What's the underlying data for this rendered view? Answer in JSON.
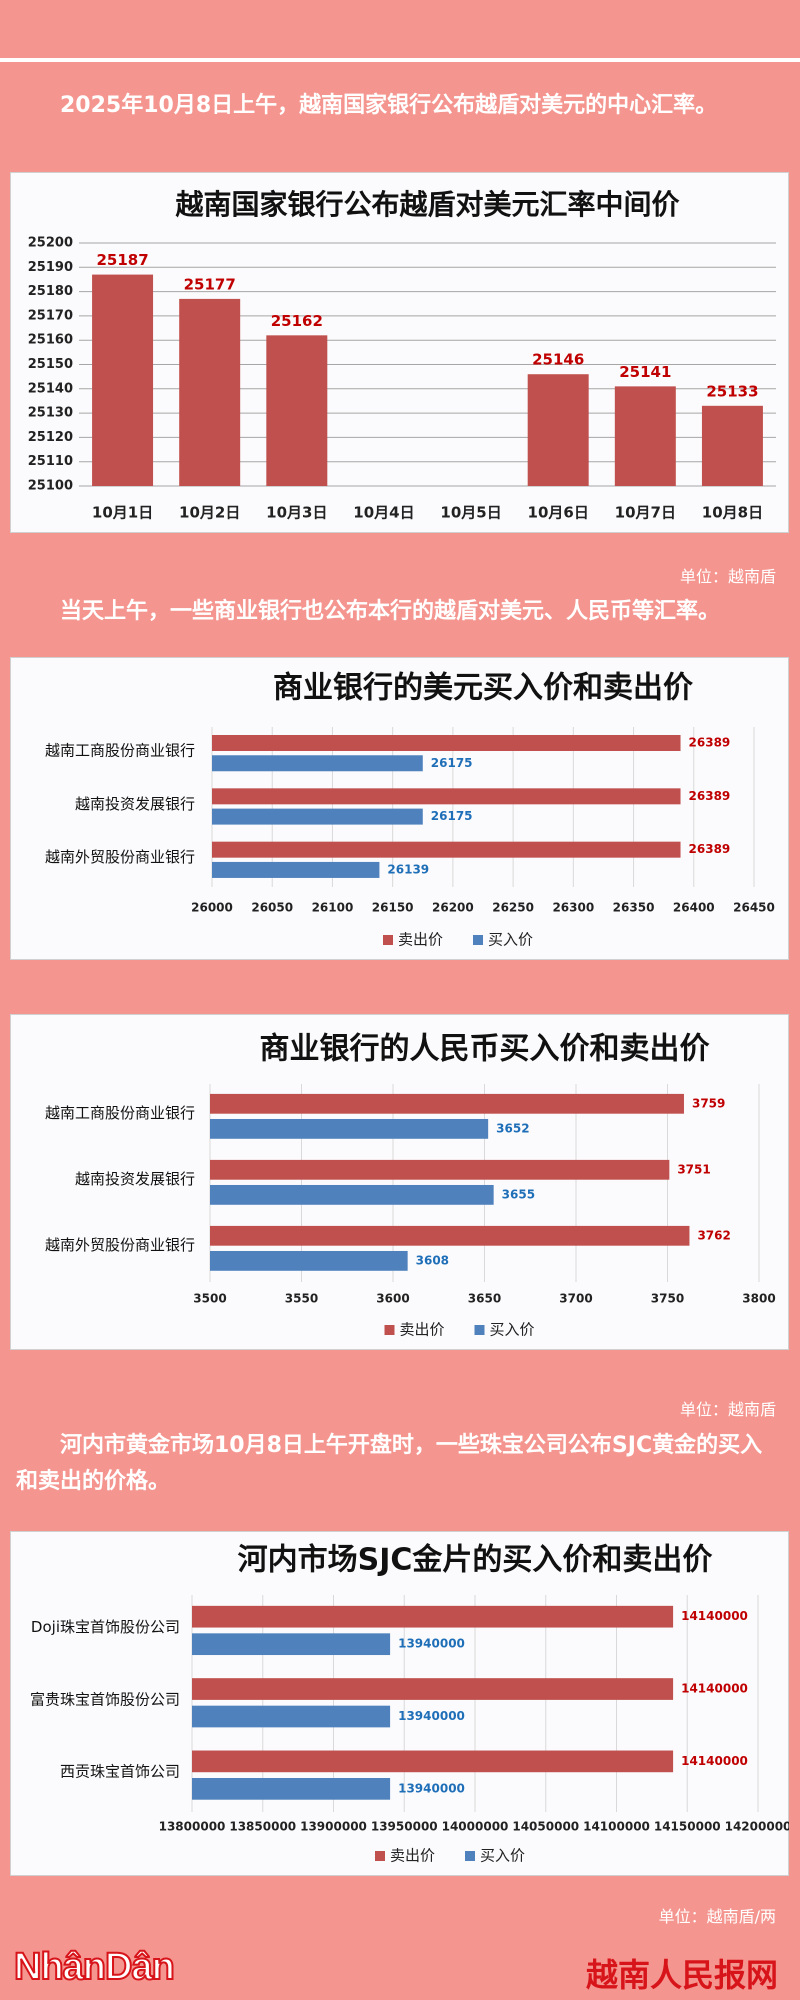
{
  "paragraphs": [
    "2025年10月8日上午，越南国家银行公布越盾对美元的中心汇率。",
    "当天上午，一些商业银行也公布本行的越盾对美元、人民币等汇率。",
    "河内市黄金市场10月8日上午开盘时，一些珠宝公司公布SJC黄金的买入和卖出的价格。"
  ],
  "units": [
    "单位：越南盾",
    "单位：越南盾",
    "单位：越南盾/两"
  ],
  "footer": {
    "left_logo": "NhânDân",
    "right_logo": "越南人民报网"
  },
  "chart_data": [
    {
      "type": "bar",
      "title": "越南国家银行公布越盾对美元汇率中间价",
      "categories": [
        "10月1日",
        "10月2日",
        "10月3日",
        "10月4日",
        "10月5日",
        "10月6日",
        "10月7日",
        "10月8日"
      ],
      "values": [
        25187,
        25177,
        25162,
        null,
        null,
        25146,
        25141,
        25133
      ],
      "color": "#c0504d",
      "label_color": "#c00000",
      "ylim": [
        25100,
        25200
      ],
      "yticks": [
        25100,
        25110,
        25120,
        25130,
        25140,
        25150,
        25160,
        25170,
        25180,
        25190,
        25200
      ],
      "grid": true
    },
    {
      "type": "hbar",
      "title": "商业银行的美元买入价和卖出价",
      "categories": [
        "越南工商股份商业银行",
        "越南投资发展银行",
        "越南外贸股份商业银行"
      ],
      "series": [
        {
          "name": "卖出价",
          "color": "#c0504d",
          "label_color": "#c00000",
          "values": [
            26389,
            26389,
            26389
          ]
        },
        {
          "name": "买入价",
          "color": "#4f81bd",
          "label_color": "#1f6fb8",
          "values": [
            26175,
            26175,
            26139
          ]
        }
      ],
      "xlim": [
        26000,
        26450
      ],
      "xticks": [
        26000,
        26050,
        26100,
        26150,
        26200,
        26250,
        26300,
        26350,
        26400,
        26450
      ],
      "grid": true,
      "legend": "bottom"
    },
    {
      "type": "hbar",
      "title": "商业银行的人民币买入价和卖出价",
      "categories": [
        "越南工商股份商业银行",
        "越南投资发展银行",
        "越南外贸股份商业银行"
      ],
      "series": [
        {
          "name": "卖出价",
          "color": "#c0504d",
          "label_color": "#c00000",
          "values": [
            3759,
            3751,
            3762
          ]
        },
        {
          "name": "买入价",
          "color": "#4f81bd",
          "label_color": "#1f6fb8",
          "values": [
            3652,
            3655,
            3608
          ]
        }
      ],
      "xlim": [
        3500,
        3800
      ],
      "xticks": [
        3500,
        3550,
        3600,
        3650,
        3700,
        3750,
        3800
      ],
      "grid": true,
      "legend": "bottom"
    },
    {
      "type": "hbar",
      "title": "河内市场SJC金片的买入价和卖出价",
      "categories": [
        "Doji珠宝首饰股份公司",
        "富贵珠宝首饰股份公司",
        "西贡珠宝首饰公司"
      ],
      "series": [
        {
          "name": "卖出价",
          "color": "#c0504d",
          "label_color": "#c00000",
          "values": [
            14140000,
            14140000,
            14140000
          ]
        },
        {
          "name": "买入价",
          "color": "#4f81bd",
          "label_color": "#1f6fb8",
          "values": [
            13940000,
            13940000,
            13940000
          ]
        }
      ],
      "xlim": [
        13800000,
        14200000
      ],
      "xticks": [
        13800000,
        13850000,
        13900000,
        13950000,
        14000000,
        14050000,
        14100000,
        14150000,
        14200000
      ],
      "grid": true,
      "legend": "bottom"
    }
  ]
}
